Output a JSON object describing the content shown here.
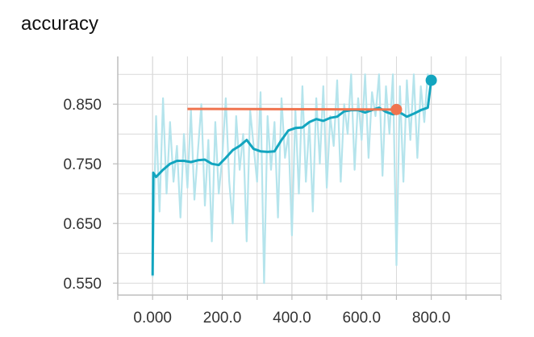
{
  "chart_data": {
    "type": "line",
    "title": "accuracy",
    "xlabel": "",
    "ylabel": "",
    "xlim": [
      -100,
      1000
    ],
    "ylim": [
      0.53,
      0.93
    ],
    "x_ticks": [
      0,
      200,
      400,
      600,
      800
    ],
    "x_tick_labels": [
      "0.000",
      "200.0",
      "400.0",
      "600.0",
      "800.0"
    ],
    "y_ticks": [
      0.55,
      0.65,
      0.75,
      0.85
    ],
    "y_tick_labels": [
      "0.550",
      "0.650",
      "0.750",
      "0.850"
    ],
    "grid": true,
    "legend": "none",
    "colors": {
      "raw": "#b5e4ec",
      "smoothed": "#12a5bf",
      "orange": "#f0744f",
      "grid": "#d9d9d9",
      "axis": "#bdbdbd"
    },
    "series": [
      {
        "style": "raw",
        "x": [
          0,
          10,
          20,
          30,
          40,
          50,
          60,
          70,
          80,
          90,
          100,
          110,
          120,
          130,
          140,
          150,
          160,
          170,
          180,
          190,
          200,
          210,
          220,
          230,
          240,
          250,
          260,
          270,
          280,
          290,
          300,
          310,
          320,
          330,
          340,
          350,
          360,
          370,
          380,
          390,
          400,
          410,
          420,
          430,
          440,
          450,
          460,
          470,
          480,
          490,
          500,
          510,
          520,
          530,
          540,
          550,
          560,
          570,
          580,
          590,
          600,
          610,
          620,
          630,
          640,
          650,
          660,
          670,
          680,
          690,
          700,
          710,
          720,
          730,
          740,
          750,
          760,
          770,
          780,
          790,
          800
        ],
        "y": [
          0.56,
          0.83,
          0.67,
          0.86,
          0.7,
          0.82,
          0.72,
          0.78,
          0.66,
          0.8,
          0.71,
          0.84,
          0.69,
          0.77,
          0.85,
          0.68,
          0.79,
          0.62,
          0.82,
          0.7,
          0.76,
          0.86,
          0.72,
          0.65,
          0.83,
          0.74,
          0.8,
          0.62,
          0.84,
          0.78,
          0.72,
          0.87,
          0.55,
          0.83,
          0.74,
          0.82,
          0.66,
          0.86,
          0.76,
          0.8,
          0.63,
          0.84,
          0.7,
          0.88,
          0.72,
          0.82,
          0.67,
          0.86,
          0.75,
          0.88,
          0.71,
          0.83,
          0.78,
          0.89,
          0.72,
          0.85,
          0.8,
          0.9,
          0.74,
          0.86,
          0.79,
          0.9,
          0.76,
          0.87,
          0.83,
          0.9,
          0.73,
          0.88,
          0.8,
          0.9,
          0.58,
          0.88,
          0.72,
          0.89,
          0.79,
          0.9,
          0.76,
          0.88,
          0.82,
          0.9,
          0.89
        ]
      },
      {
        "style": "smoothed",
        "x": [
          0,
          2,
          10,
          30,
          50,
          70,
          90,
          110,
          130,
          150,
          170,
          190,
          210,
          230,
          250,
          270,
          290,
          310,
          330,
          350,
          370,
          390,
          410,
          430,
          450,
          470,
          490,
          510,
          530,
          550,
          570,
          590,
          610,
          630,
          650,
          670,
          690,
          710,
          730,
          750,
          770,
          790,
          800
        ],
        "y": [
          0.563,
          0.735,
          0.728,
          0.74,
          0.75,
          0.755,
          0.755,
          0.753,
          0.756,
          0.757,
          0.75,
          0.748,
          0.76,
          0.773,
          0.78,
          0.79,
          0.775,
          0.771,
          0.77,
          0.771,
          0.79,
          0.806,
          0.81,
          0.811,
          0.82,
          0.825,
          0.822,
          0.827,
          0.829,
          0.838,
          0.84,
          0.84,
          0.836,
          0.84,
          0.844,
          0.837,
          0.833,
          0.836,
          0.829,
          0.834,
          0.84,
          0.844,
          0.89
        ]
      },
      {
        "style": "orange",
        "x": [
          100,
          700
        ],
        "y": [
          0.842,
          0.841
        ]
      }
    ],
    "end_markers": [
      {
        "style": "smoothed",
        "x": 800,
        "y": 0.89
      },
      {
        "style": "orange",
        "x": 700,
        "y": 0.841
      }
    ]
  }
}
